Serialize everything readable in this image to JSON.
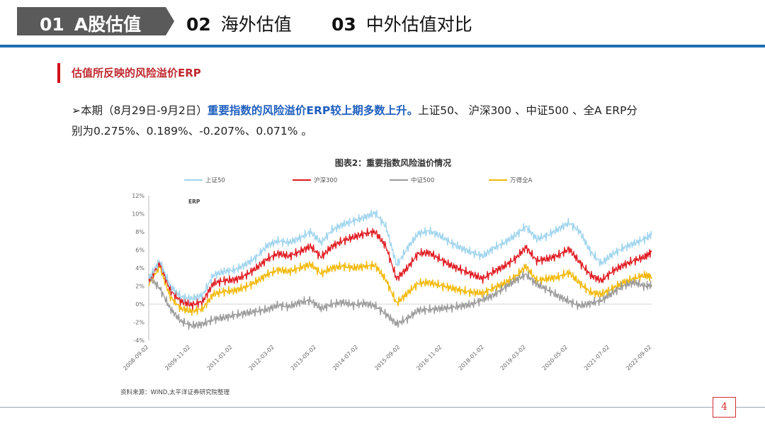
{
  "tabs": [
    {
      "num": "01",
      "label": "A股估值",
      "active": true
    },
    {
      "num": "02",
      "label": "海外估值",
      "active": false
    },
    {
      "num": "03",
      "label": "中外估值对比",
      "active": false
    }
  ],
  "section": {
    "title": "估值所反映的风险溢价ERP"
  },
  "paragraph": {
    "bullet": "➢",
    "lead": "本期（8月29日-9月2日）",
    "highlight": "重要指数的风险溢价ERP较上期多数上升。",
    "body1": "上证50、 沪深300 、中证500 、全A ERP分",
    "body2": "别为0.275%、0.189%、-0.207%、0.071% 。"
  },
  "chart_data": {
    "type": "line",
    "title": "图表2：重要指数风险溢价情况",
    "ylabel": "ERP",
    "ylim": [
      -4,
      12
    ],
    "yticks": [
      "12%",
      "10%",
      "8%",
      "6%",
      "4%",
      "2%",
      "0%",
      "-2%",
      "-4%"
    ],
    "xticks": [
      "2008-09-02",
      "2009-11-02",
      "2011-01-02",
      "2012-03-02",
      "2013-05-02",
      "2014-07-02",
      "2015-09-02",
      "2016-11-02",
      "2018-01-02",
      "2019-03-02",
      "2020-05-02",
      "2021-07-02",
      "2022-09-02"
    ],
    "x": [
      2008.7,
      2009.0,
      2009.3,
      2009.6,
      2009.9,
      2010.2,
      2010.5,
      2010.8,
      2011.1,
      2011.4,
      2011.7,
      2012.0,
      2012.3,
      2012.6,
      2012.9,
      2013.2,
      2013.5,
      2013.8,
      2014.1,
      2014.4,
      2014.7,
      2015.0,
      2015.3,
      2015.6,
      2015.9,
      2016.2,
      2016.5,
      2016.8,
      2017.1,
      2017.4,
      2017.7,
      2018.0,
      2018.3,
      2018.6,
      2018.9,
      2019.2,
      2019.5,
      2019.8,
      2020.1,
      2020.4,
      2020.7,
      2021.0,
      2021.3,
      2021.6,
      2021.9,
      2022.2,
      2022.5,
      2022.7
    ],
    "series": [
      {
        "name": "上证50",
        "color": "#9fd4ee",
        "values": [
          2.8,
          4.8,
          2.0,
          0.8,
          0.6,
          1.0,
          3.2,
          3.6,
          3.8,
          4.4,
          5.2,
          6.5,
          7.0,
          6.8,
          7.3,
          8.0,
          6.8,
          8.2,
          8.8,
          9.2,
          9.6,
          10.1,
          8.6,
          4.3,
          6.2,
          7.8,
          8.1,
          7.6,
          6.8,
          6.2,
          5.7,
          5.3,
          6.2,
          6.8,
          7.6,
          8.6,
          7.2,
          7.6,
          8.3,
          9.0,
          8.0,
          5.8,
          4.5,
          5.5,
          6.2,
          6.7,
          7.2,
          7.7
        ]
      },
      {
        "name": "沪深300",
        "color": "#e0181f",
        "values": [
          2.5,
          4.6,
          1.5,
          0.3,
          -0.1,
          0.3,
          2.3,
          2.6,
          2.7,
          3.2,
          4.0,
          5.0,
          5.6,
          5.3,
          5.8,
          6.4,
          5.2,
          6.4,
          7.0,
          7.4,
          7.8,
          8.0,
          6.4,
          2.8,
          4.0,
          5.6,
          5.7,
          5.0,
          4.3,
          3.8,
          3.3,
          2.8,
          3.6,
          4.2,
          5.0,
          6.3,
          4.8,
          5.0,
          5.4,
          6.1,
          4.6,
          3.2,
          2.6,
          3.6,
          4.3,
          4.8,
          5.2,
          5.8
        ]
      },
      {
        "name": "中证500",
        "color": "#9a9a9a",
        "values": [
          3.0,
          1.8,
          -0.5,
          -1.9,
          -2.4,
          -2.2,
          -1.7,
          -1.5,
          -1.2,
          -1.0,
          -0.8,
          -0.6,
          -0.1,
          -0.3,
          0.2,
          0.4,
          -0.5,
          0.0,
          0.2,
          -0.1,
          0.1,
          -0.2,
          -1.1,
          -2.2,
          -1.6,
          -0.7,
          -0.6,
          -0.5,
          -0.4,
          -0.2,
          0.0,
          0.5,
          1.0,
          1.8,
          2.6,
          3.3,
          2.2,
          1.6,
          0.9,
          0.3,
          -0.2,
          0.1,
          0.4,
          1.2,
          2.0,
          2.4,
          2.0,
          2.1
        ]
      },
      {
        "name": "万得全A",
        "color": "#f2b807",
        "values": [
          2.2,
          4.2,
          0.8,
          -0.5,
          -0.8,
          -0.5,
          1.1,
          1.4,
          1.5,
          1.9,
          2.5,
          3.3,
          3.8,
          3.6,
          4.0,
          4.4,
          3.4,
          4.0,
          4.2,
          4.0,
          4.2,
          4.3,
          2.7,
          0.1,
          1.2,
          2.3,
          2.4,
          2.1,
          1.8,
          1.5,
          1.3,
          1.2,
          1.8,
          2.3,
          3.0,
          4.2,
          2.6,
          2.8,
          3.0,
          3.5,
          2.3,
          1.3,
          1.1,
          1.7,
          2.4,
          2.8,
          3.2,
          3.0
        ]
      }
    ],
    "source": "资料来源：WIND,太平洋证券研究院整理"
  },
  "page_number": "4"
}
